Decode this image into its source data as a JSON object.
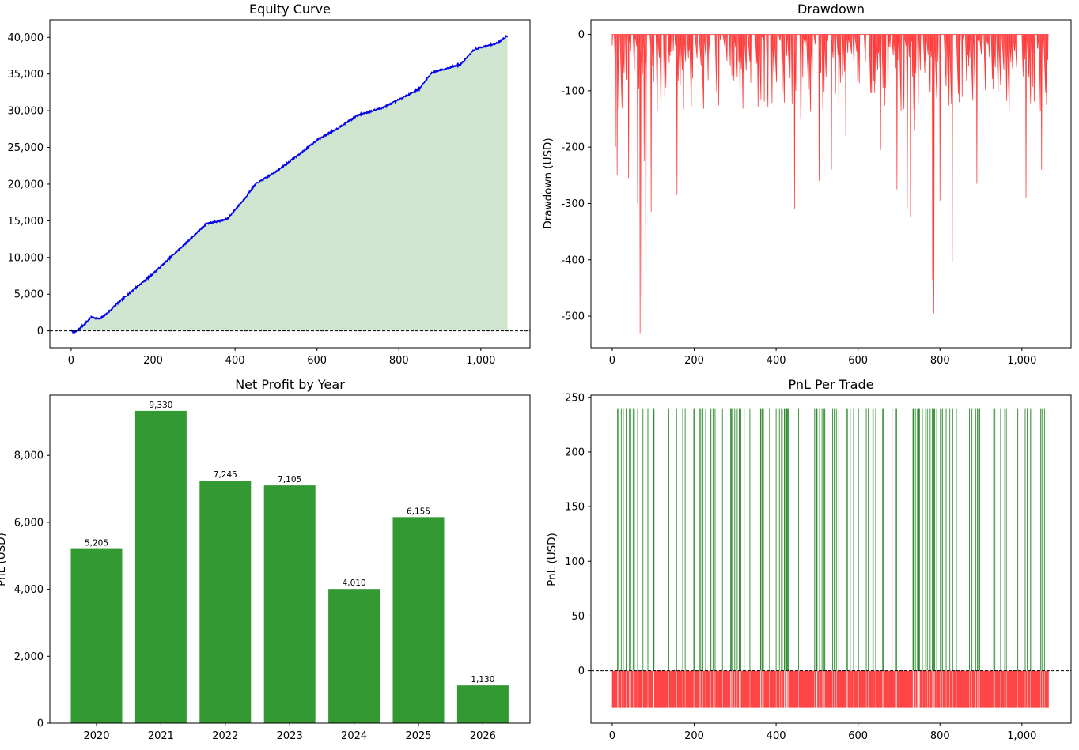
{
  "figure": {
    "background": "#ffffff"
  },
  "chart_data": [
    {
      "id": "equity",
      "type": "area",
      "title": "Equity Curve",
      "xlabel": "",
      "ylabel": "",
      "xlim": [
        -52,
        1120
      ],
      "ylim": [
        -2300,
        42400
      ],
      "xticks": [
        0,
        200,
        400,
        600,
        800,
        1000
      ],
      "yticks": [
        0,
        5000,
        10000,
        15000,
        20000,
        25000,
        30000,
        35000,
        40000
      ],
      "line_color": "#0000ee",
      "fill_color": "#cfe5cf",
      "zero_line": true,
      "n_trades": 1066,
      "series": [
        {
          "name": "Equity",
          "points": [
            [
              0,
              0
            ],
            [
              10,
              -200
            ],
            [
              30,
              800
            ],
            [
              50,
              1900
            ],
            [
              70,
              1600
            ],
            [
              90,
              2500
            ],
            [
              110,
              3600
            ],
            [
              150,
              5500
            ],
            [
              200,
              7800
            ],
            [
              250,
              10400
            ],
            [
              300,
              13000
            ],
            [
              330,
              14600
            ],
            [
              380,
              15200
            ],
            [
              420,
              17800
            ],
            [
              450,
              20000
            ],
            [
              500,
              21700
            ],
            [
              560,
              24200
            ],
            [
              600,
              26000
            ],
            [
              650,
              27600
            ],
            [
              700,
              29400
            ],
            [
              760,
              30400
            ],
            [
              800,
              31500
            ],
            [
              850,
              33000
            ],
            [
              880,
              35200
            ],
            [
              950,
              36300
            ],
            [
              985,
              38400
            ],
            [
              1040,
              39200
            ],
            [
              1066,
              40300
            ]
          ]
        }
      ]
    },
    {
      "id": "drawdown",
      "type": "area",
      "title": "Drawdown",
      "xlabel": "",
      "ylabel": "Drawdown (USD)",
      "xlim": [
        -52,
        1120
      ],
      "ylim": [
        -556,
        26
      ],
      "xticks": [
        0,
        200,
        400,
        600,
        800,
        1000
      ],
      "yticks": [
        0,
        -100,
        -200,
        -300,
        -400,
        -500
      ],
      "color": "#ff3030",
      "n_trades": 1066,
      "spikes": [
        [
          8,
          -200
        ],
        [
          12,
          -250
        ],
        [
          40,
          -255
        ],
        [
          62,
          -300
        ],
        [
          68,
          -530
        ],
        [
          72,
          -465
        ],
        [
          78,
          -225
        ],
        [
          82,
          -445
        ],
        [
          95,
          -315
        ],
        [
          158,
          -285
        ],
        [
          445,
          -310
        ],
        [
          460,
          -150
        ],
        [
          505,
          -260
        ],
        [
          535,
          -240
        ],
        [
          570,
          -180
        ],
        [
          655,
          -205
        ],
        [
          695,
          -275
        ],
        [
          720,
          -310
        ],
        [
          728,
          -325
        ],
        [
          738,
          -170
        ],
        [
          782,
          -435
        ],
        [
          785,
          -495
        ],
        [
          800,
          -295
        ],
        [
          830,
          -405
        ],
        [
          890,
          -265
        ],
        [
          1010,
          -290
        ],
        [
          1048,
          -240
        ],
        [
          1060,
          -125
        ]
      ]
    },
    {
      "id": "yearly",
      "type": "bar",
      "title": "Net Profit by Year",
      "xlabel": "",
      "ylabel": "PnL (USD)",
      "ylim": [
        0,
        9800
      ],
      "yticks": [
        0,
        2000,
        4000,
        6000,
        8000
      ],
      "color": "#339933",
      "categories": [
        "2020",
        "2021",
        "2022",
        "2023",
        "2024",
        "2025",
        "2026"
      ],
      "values": [
        5205,
        9330,
        7245,
        7105,
        4010,
        6155,
        1130
      ]
    },
    {
      "id": "pnl",
      "type": "bar",
      "title": "PnL Per Trade",
      "xlabel": "",
      "ylabel": "PnL (USD)",
      "xlim": [
        -52,
        1120
      ],
      "ylim": [
        -48,
        252
      ],
      "xticks": [
        0,
        200,
        400,
        600,
        800,
        1000
      ],
      "yticks": [
        0,
        50,
        100,
        150,
        200,
        250
      ],
      "win_value": 240,
      "loss_value": -34,
      "win_color": "#2e8b2e",
      "loss_color": "#ff3b3b",
      "n_trades": 1066,
      "zero_line": true
    }
  ]
}
